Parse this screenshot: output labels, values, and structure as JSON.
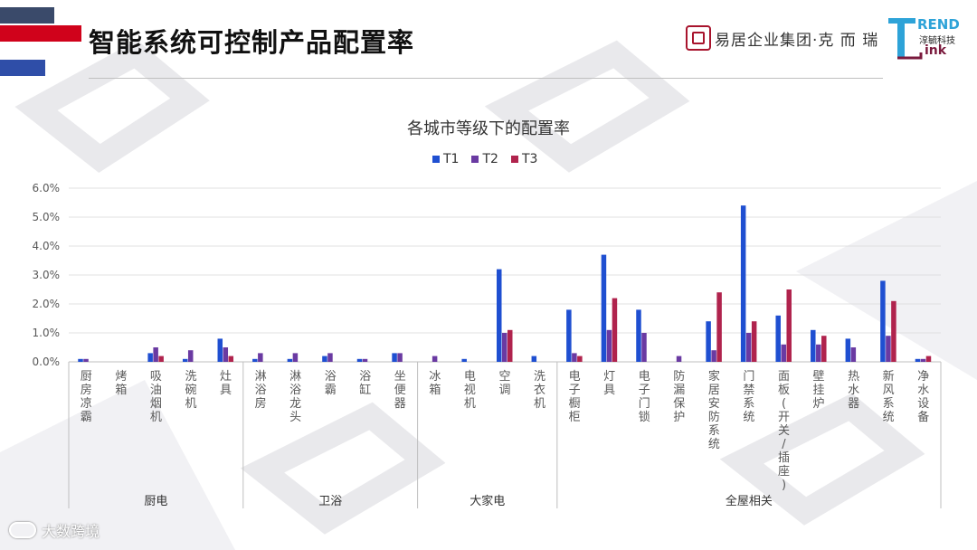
{
  "header": {
    "title": "智能系统可控制产品配置率",
    "brand_text": "易居企业集团·克 而 瑞",
    "logo_rend": "REND",
    "logo_cn": "淳毓科技",
    "logo_ink": "ink"
  },
  "footer": {
    "text": "大数跨境"
  },
  "colors": {
    "T1": "#1f4fd1",
    "T2": "#6a3aa2",
    "T3": "#b0234d",
    "stripe_red": "#d0021b",
    "stripe_blue": "#2f4ea8"
  },
  "chart_data": {
    "type": "bar",
    "title": "各城市等级下的配置率",
    "ylim": [
      0,
      6.0
    ],
    "yticks": [
      "0.0%",
      "1.0%",
      "2.0%",
      "3.0%",
      "4.0%",
      "5.0%",
      "6.0%"
    ],
    "legend_position": "top-center",
    "grid": true,
    "categories": [
      "厨房凉霸",
      "烤箱",
      "吸油烟机",
      "洗碗机",
      "灶具",
      "淋浴房",
      "淋浴龙头",
      "浴霸",
      "浴缸",
      "坐便器",
      "冰箱",
      "电视机",
      "空调",
      "洗衣机",
      "电子橱柜",
      "灯具",
      "电子门锁",
      "防漏保护",
      "家居安防系统",
      "门禁系统",
      "面板(开关/插座)",
      "壁挂炉",
      "热水器",
      "新风系统",
      "净水设备"
    ],
    "series": [
      {
        "name": "T1",
        "values": [
          0.1,
          0.0,
          0.3,
          0.1,
          0.8,
          0.1,
          0.1,
          0.2,
          0.1,
          0.3,
          0.0,
          0.1,
          3.2,
          0.2,
          1.8,
          3.7,
          1.8,
          0.0,
          1.4,
          5.4,
          1.6,
          1.1,
          0.8,
          2.8,
          0.1
        ]
      },
      {
        "name": "T2",
        "values": [
          0.1,
          0.0,
          0.5,
          0.4,
          0.5,
          0.3,
          0.3,
          0.3,
          0.1,
          0.3,
          0.2,
          0.0,
          1.0,
          0.0,
          0.3,
          1.1,
          1.0,
          0.2,
          0.4,
          1.0,
          0.6,
          0.6,
          0.5,
          0.9,
          0.1
        ]
      },
      {
        "name": "T3",
        "values": [
          0.0,
          0.0,
          0.2,
          0.0,
          0.2,
          0.0,
          0.0,
          0.0,
          0.0,
          0.0,
          0.0,
          0.0,
          1.1,
          0.0,
          0.2,
          2.2,
          0.0,
          0.0,
          2.4,
          1.4,
          2.5,
          0.9,
          0.0,
          2.1,
          0.2
        ]
      }
    ],
    "groups": [
      {
        "label": "厨电",
        "start": 0,
        "end": 4
      },
      {
        "label": "卫浴",
        "start": 5,
        "end": 9
      },
      {
        "label": "大家电",
        "start": 10,
        "end": 13
      },
      {
        "label": "全屋相关",
        "start": 14,
        "end": 24
      }
    ]
  }
}
